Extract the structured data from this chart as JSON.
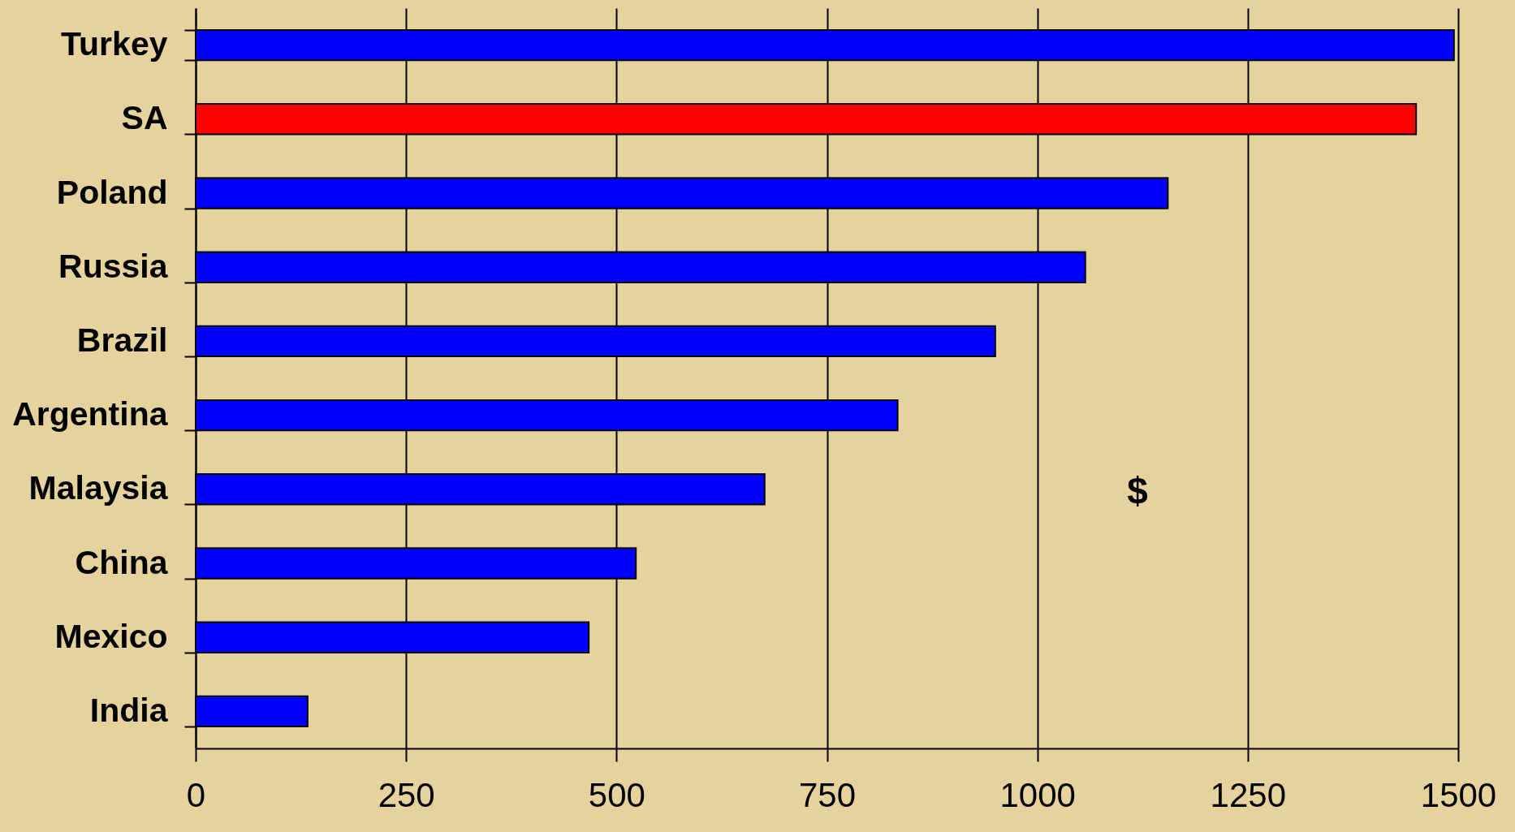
{
  "chart_data": {
    "type": "bar",
    "orientation": "horizontal",
    "categories": [
      "Turkey",
      "SA",
      "Poland",
      "Russia",
      "Brazil",
      "Argentina",
      "Malaysia",
      "China",
      "Mexico",
      "India"
    ],
    "values": [
      1495,
      1450,
      1155,
      1057,
      950,
      834,
      676,
      523,
      467,
      133
    ],
    "colors": [
      "#0000ff",
      "#ff0000",
      "#0000ff",
      "#0000ff",
      "#0000ff",
      "#0000ff",
      "#0000ff",
      "#0000ff",
      "#0000ff",
      "#0000ff"
    ],
    "xlim": [
      0,
      1500
    ],
    "xticks": [
      0,
      250,
      500,
      750,
      1000,
      1250,
      1500
    ],
    "grid": "x",
    "annotations": [
      "$"
    ]
  }
}
